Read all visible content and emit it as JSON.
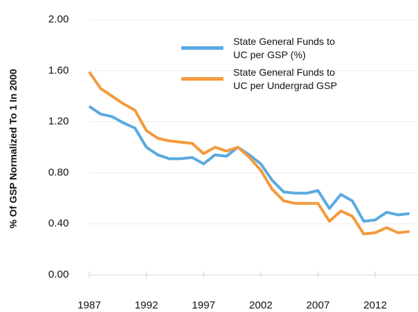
{
  "chart_data": {
    "type": "line",
    "y_label": "% Of GSP Normalized To 1 In 2000",
    "x": [
      1987,
      1988,
      1989,
      1990,
      1991,
      1992,
      1993,
      1994,
      1995,
      1996,
      1997,
      1998,
      1999,
      2000,
      2001,
      2002,
      2003,
      2004,
      2005,
      2006,
      2007,
      2008,
      2009,
      2010,
      2011,
      2012,
      2013,
      2014,
      2015
    ],
    "series": [
      {
        "name": "State General Funds to UC per GSP (%)",
        "color": "#5aaae0",
        "values": [
          1.32,
          1.26,
          1.24,
          1.19,
          1.15,
          1.0,
          0.94,
          0.91,
          0.91,
          0.92,
          0.87,
          0.94,
          0.93,
          1.0,
          0.94,
          0.87,
          0.74,
          0.65,
          0.64,
          0.64,
          0.66,
          0.52,
          0.63,
          0.58,
          0.42,
          0.43,
          0.49,
          0.47,
          0.48
        ]
      },
      {
        "name": "State General Funds to UC per Undergrad GSP",
        "color": "#f39a3c",
        "values": [
          1.59,
          1.46,
          1.4,
          1.34,
          1.29,
          1.13,
          1.07,
          1.05,
          1.04,
          1.03,
          0.95,
          1.0,
          0.97,
          1.0,
          0.92,
          0.82,
          0.67,
          0.58,
          0.56,
          0.56,
          0.56,
          0.42,
          0.5,
          0.46,
          0.32,
          0.33,
          0.37,
          0.33,
          0.34
        ]
      }
    ],
    "xlim": [
      1987,
      2015.5
    ],
    "xticks": [
      1987,
      1992,
      1997,
      2002,
      2007,
      2012
    ],
    "ylim": [
      0,
      2
    ],
    "yticks": [
      {
        "value": 0,
        "label": "0.00"
      },
      {
        "value": 0.4,
        "label": "0.40"
      },
      {
        "value": 0.8,
        "label": "0.80"
      },
      {
        "value": 1.2,
        "label": "1.20"
      },
      {
        "value": 1.6,
        "label": "1.60"
      },
      {
        "value": 2,
        "label": "2.00"
      }
    ],
    "grid": true
  }
}
